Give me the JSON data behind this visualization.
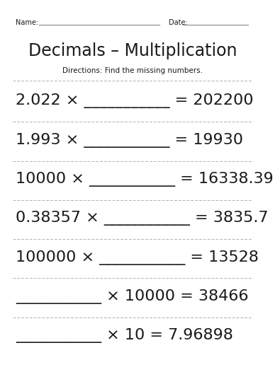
{
  "title": "Decimals – Multiplication",
  "directions": "Directions: Find the missing numbers.",
  "name_label": "Name:",
  "date_label": "Date:",
  "bg_color": "#ffffff",
  "title_fontsize": 17,
  "directions_fontsize": 7.5,
  "problem_fontsize": 16,
  "header_fontsize": 7,
  "problems": [
    "2.022 × ___________ = 202200",
    "1.993 × ___________ = 19930",
    "10000 × ___________ = 16338.39",
    "0.38357 × ___________ = 3835.7",
    "100000 × ___________ = 13528",
    "___________ × 10000 = 38466",
    "___________ × 10 = 7.96898"
  ],
  "divider_color": "#b0b0b0",
  "text_color": "#1a1a1a",
  "header_line_color": "#888888"
}
